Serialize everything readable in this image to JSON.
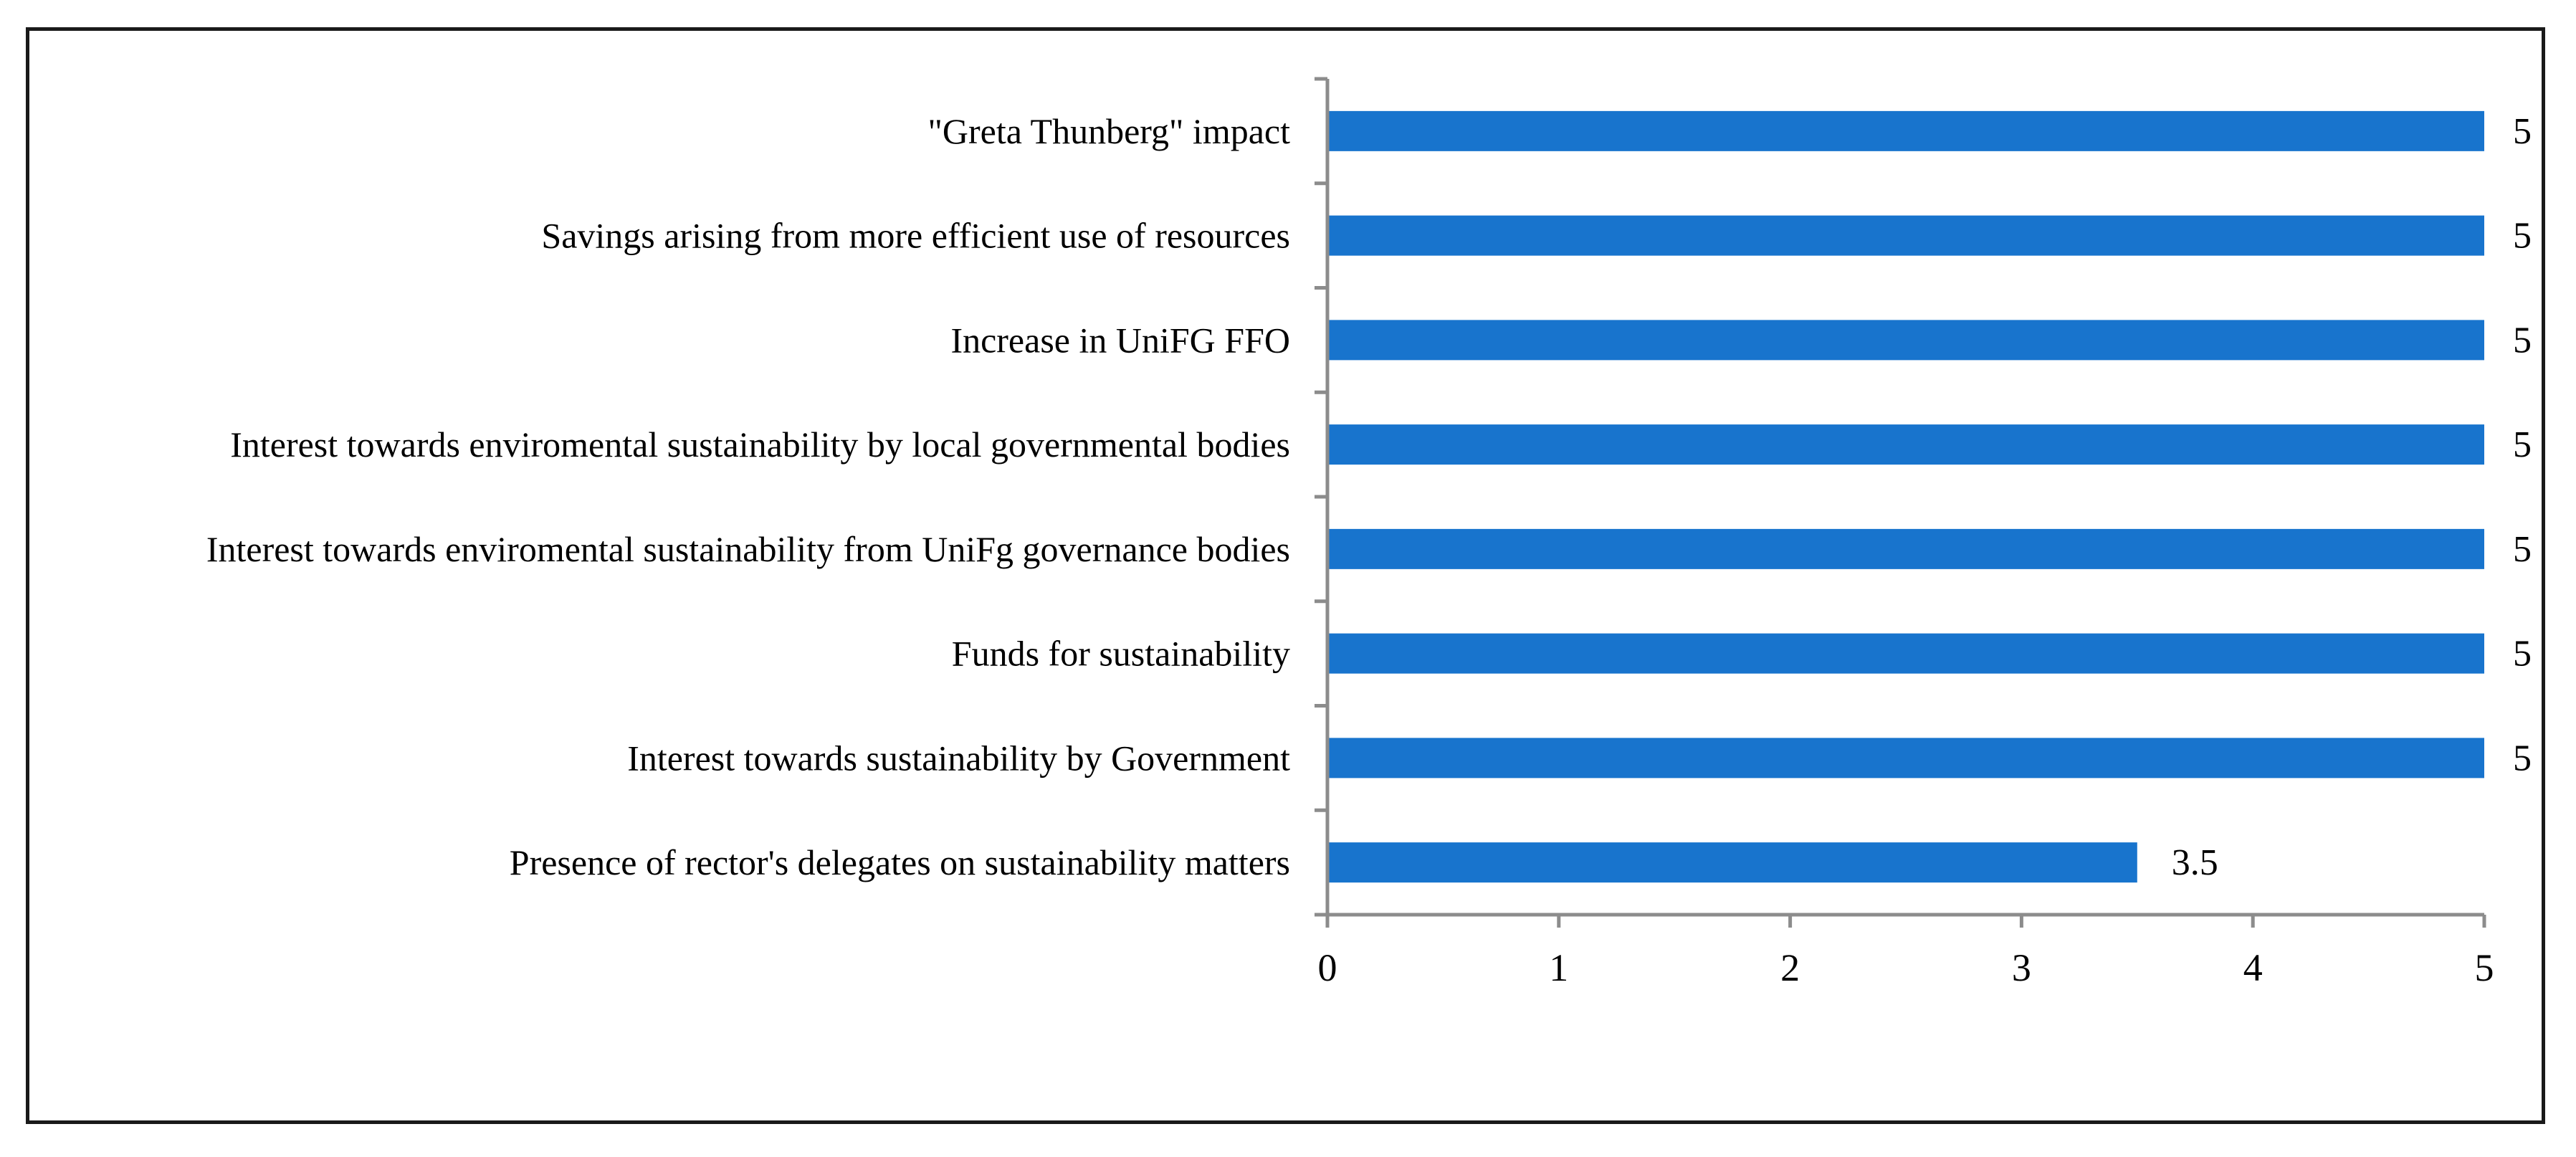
{
  "colors": {
    "bar": "#1874CD",
    "axis": "#8C8C8C",
    "text": "#000000"
  },
  "chart_data": {
    "type": "bar",
    "orientation": "horizontal",
    "title": "",
    "xlabel": "",
    "ylabel": "",
    "grid": false,
    "legend": "none",
    "xlim": [
      0,
      5
    ],
    "xticks": [
      "0",
      "1",
      "2",
      "3",
      "4",
      "5"
    ],
    "categories": [
      "\"Greta Thunberg\" impact",
      "Savings arising from more efficient use of resources",
      "Increase in UniFG FFO",
      "Interest towards enviromental sustainability by local governmental bodies",
      "Interest towards enviromental sustainability from UniFg governance bodies",
      "Funds  for sustainability",
      "Interest towards sustainability by Government",
      "Presence of rector's delegates on sustainability matters"
    ],
    "values": [
      5,
      5,
      5,
      5,
      5,
      5,
      5,
      3.5
    ],
    "value_labels": [
      "5",
      "5",
      "5",
      "5",
      "5",
      "5",
      "5",
      "3.5"
    ]
  }
}
